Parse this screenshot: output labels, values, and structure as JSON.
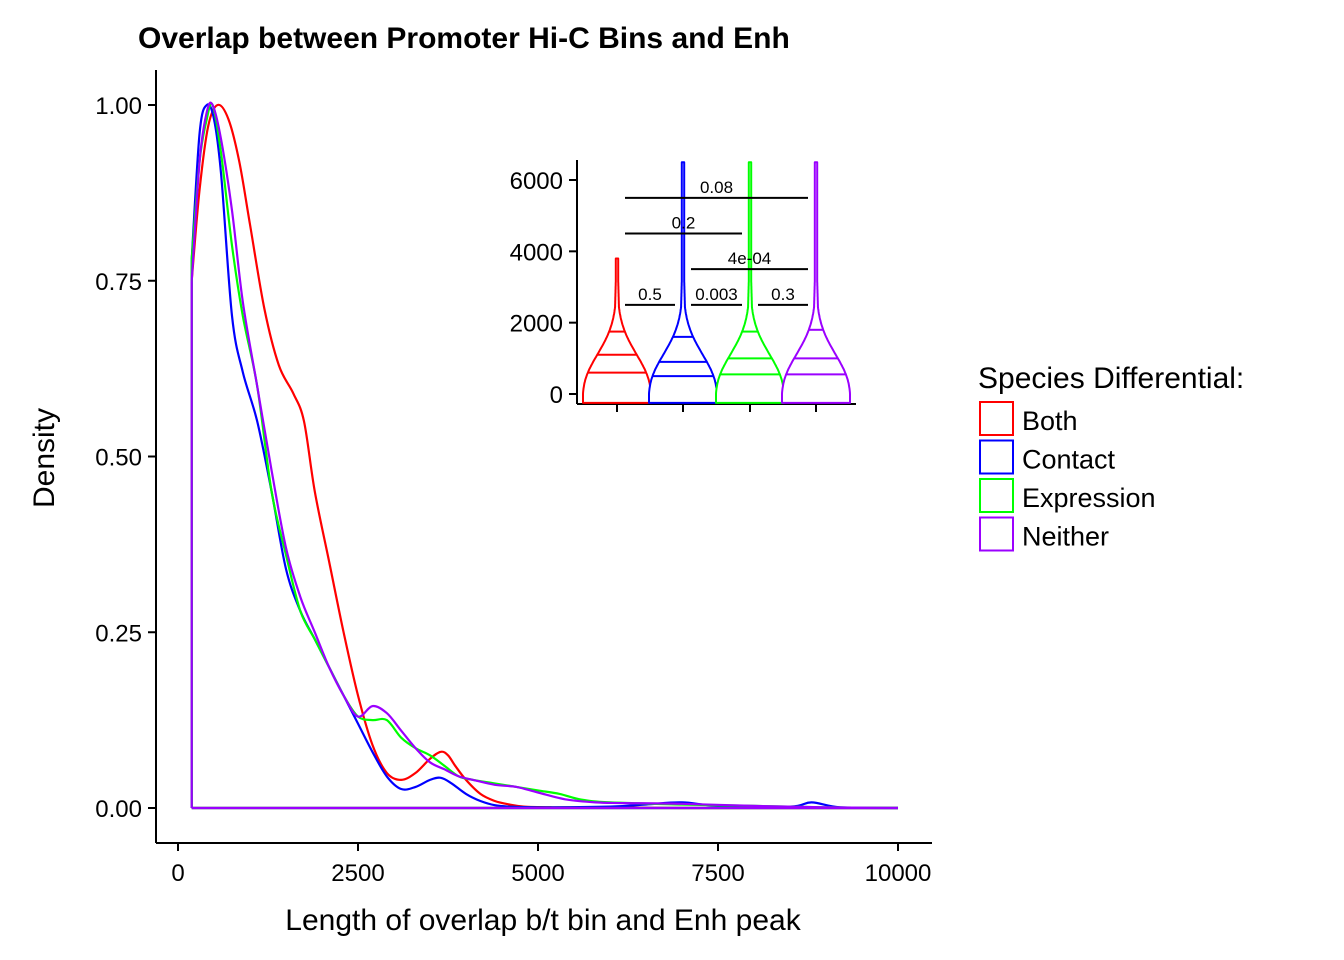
{
  "chart_data": [
    {
      "type": "line",
      "title": "Overlap between Promoter Hi-C Bins and Enh",
      "xlabel": "Length of overlap b/t bin and Enh peak",
      "ylabel": "Density",
      "xlim": [
        -600,
        10600
      ],
      "ylim": [
        -0.1,
        1.05
      ],
      "xticks": [
        0,
        2500,
        5000,
        7500,
        10000
      ],
      "xtick_labels": [
        "0",
        "2500",
        "5000",
        "7500",
        "10000"
      ],
      "yticks": [
        0,
        0.25,
        0.5,
        0.75,
        1.0
      ],
      "ytick_labels": [
        "0.00",
        "0.25",
        "0.50",
        "0.75",
        "1.00"
      ],
      "grid": false,
      "legend": {
        "title": "Species Differential:",
        "placement": "right",
        "entries": [
          "Both",
          "Contact",
          "Expression",
          "Neither"
        ]
      },
      "series": [
        {
          "name": "Both",
          "color": "#ff0000",
          "x": [
            190,
            300,
            420,
            550,
            700,
            850,
            1000,
            1200,
            1400,
            1600,
            1750,
            1900,
            2100,
            2300,
            2500,
            2700,
            2900,
            3100,
            3300,
            3500,
            3650,
            3750,
            3850,
            4000,
            4200,
            4400,
            4600,
            4800,
            5200,
            5600,
            6000,
            7000,
            8000,
            9000,
            10000
          ],
          "y": [
            0.75,
            0.88,
            0.97,
            1.0,
            0.98,
            0.92,
            0.83,
            0.71,
            0.63,
            0.59,
            0.55,
            0.45,
            0.35,
            0.25,
            0.16,
            0.09,
            0.05,
            0.04,
            0.05,
            0.07,
            0.08,
            0.075,
            0.06,
            0.04,
            0.02,
            0.01,
            0.005,
            0.002,
            0.001,
            0.001,
            0.001,
            0.0,
            0.0,
            0.0,
            0.0
          ]
        },
        {
          "name": "Contact",
          "color": "#0000ff",
          "x": [
            190,
            300,
            400,
            500,
            600,
            750,
            900,
            1100,
            1300,
            1500,
            1700,
            1900,
            2100,
            2300,
            2500,
            2700,
            2900,
            3100,
            3300,
            3500,
            3650,
            3800,
            4000,
            4200,
            4400,
            4600,
            5000,
            6000,
            6500,
            7000,
            7500,
            8500,
            8800,
            9200,
            10000
          ],
          "y": [
            0.78,
            0.96,
            1.0,
            0.98,
            0.9,
            0.7,
            0.62,
            0.55,
            0.45,
            0.34,
            0.28,
            0.24,
            0.2,
            0.16,
            0.12,
            0.08,
            0.045,
            0.027,
            0.03,
            0.04,
            0.043,
            0.035,
            0.02,
            0.01,
            0.004,
            0.002,
            0.001,
            0.002,
            0.005,
            0.008,
            0.003,
            0.002,
            0.008,
            0.001,
            0.0
          ]
        },
        {
          "name": "Expression",
          "color": "#00ff00",
          "x": [
            190,
            300,
            400,
            480,
            600,
            750,
            900,
            1100,
            1300,
            1500,
            1700,
            1900,
            2100,
            2300,
            2500,
            2700,
            2900,
            3100,
            3300,
            3500,
            3700,
            3900,
            4100,
            4400,
            4700,
            5000,
            5300,
            5600,
            6000,
            7000,
            8000,
            9000,
            10000
          ],
          "y": [
            0.78,
            0.92,
            0.98,
            1.0,
            0.93,
            0.8,
            0.7,
            0.6,
            0.45,
            0.36,
            0.28,
            0.24,
            0.2,
            0.16,
            0.13,
            0.125,
            0.125,
            0.1,
            0.085,
            0.075,
            0.06,
            0.045,
            0.04,
            0.035,
            0.03,
            0.025,
            0.02,
            0.012,
            0.008,
            0.005,
            0.003,
            0.001,
            0.0
          ]
        },
        {
          "name": "Neither",
          "color": "#9b00ff",
          "x": [
            190,
            300,
            400,
            480,
            600,
            750,
            900,
            1100,
            1300,
            1500,
            1700,
            1900,
            2100,
            2300,
            2500,
            2700,
            2900,
            3100,
            3300,
            3500,
            3700,
            3900,
            4100,
            4400,
            4700,
            5000,
            5400,
            5800,
            6200,
            7000,
            8000,
            9000,
            10000
          ],
          "y": [
            0.75,
            0.92,
            0.99,
            1.0,
            0.95,
            0.85,
            0.72,
            0.6,
            0.48,
            0.37,
            0.3,
            0.25,
            0.2,
            0.16,
            0.13,
            0.145,
            0.135,
            0.11,
            0.085,
            0.065,
            0.055,
            0.045,
            0.04,
            0.033,
            0.03,
            0.022,
            0.012,
            0.008,
            0.007,
            0.006,
            0.003,
            0.001,
            0.0
          ]
        }
      ],
      "baseline": {
        "x_start": 190,
        "x_end": 10000,
        "y": 0
      }
    },
    {
      "type": "violin",
      "yticks": [
        0,
        2000,
        4000,
        6000
      ],
      "ytick_labels": [
        "0",
        "2000",
        "4000",
        "6000"
      ],
      "ylim": [
        -300,
        6500
      ],
      "categories": [
        "Both",
        "Contact",
        "Expression",
        "Neither"
      ],
      "violins": [
        {
          "name": "Both",
          "color": "#ff0000",
          "max": 3800,
          "quantiles": [
            600,
            1100,
            1750
          ]
        },
        {
          "name": "Contact",
          "color": "#0000ff",
          "max": 6500,
          "quantiles": [
            500,
            900,
            1600
          ]
        },
        {
          "name": "Expression",
          "color": "#00ff00",
          "max": 6500,
          "quantiles": [
            550,
            1000,
            1750
          ]
        },
        {
          "name": "Neither",
          "color": "#9b00ff",
          "max": 6500,
          "quantiles": [
            550,
            1000,
            1800
          ]
        }
      ],
      "comparisons": [
        {
          "from": 0,
          "to": 1,
          "y": 2500,
          "label": "0.5"
        },
        {
          "from": 1,
          "to": 2,
          "y": 2500,
          "label": "0.003"
        },
        {
          "from": 2,
          "to": 3,
          "y": 2500,
          "label": "0.3"
        },
        {
          "from": 1,
          "to": 3,
          "y": 3500,
          "label": "4e-04"
        },
        {
          "from": 0,
          "to": 2,
          "y": 4500,
          "label": "0.2"
        },
        {
          "from": 0,
          "to": 3,
          "y": 5500,
          "label": "0.08"
        }
      ]
    }
  ]
}
